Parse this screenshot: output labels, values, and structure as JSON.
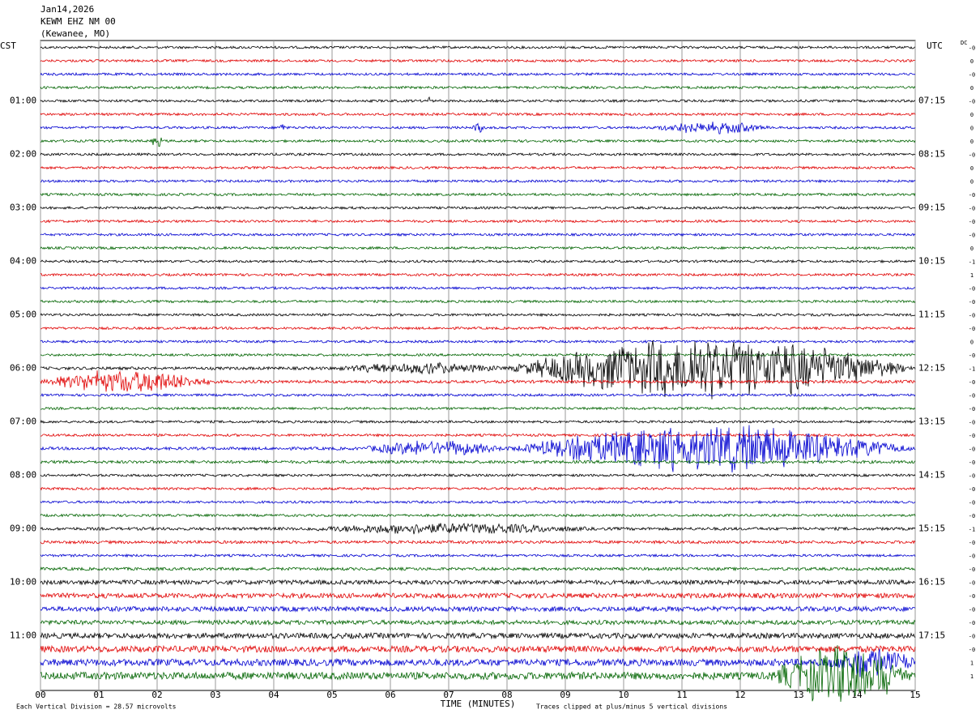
{
  "header": {
    "date": "Jan14,2026",
    "station": "KEWM EHZ NM 00",
    "location": "(Kewanee, MO)"
  },
  "left_zone": "CST",
  "right_zone": "UTC",
  "dc_heading": "DC",
  "left_labels": [
    "01:00",
    "02:00",
    "03:00",
    "04:00",
    "05:00",
    "06:00",
    "07:00",
    "08:00",
    "09:00",
    "10:00",
    "11:00"
  ],
  "right_labels": [
    "07:15",
    "08:15",
    "09:15",
    "10:15",
    "11:15",
    "12:15",
    "13:15",
    "14:15",
    "15:15",
    "16:15",
    "17:15"
  ],
  "x_ticks": [
    "00",
    "01",
    "02",
    "03",
    "04",
    "05",
    "06",
    "07",
    "08",
    "09",
    "10",
    "11",
    "12",
    "13",
    "14",
    "15"
  ],
  "x_title": "TIME (MINUTES)",
  "footer_left": "Each Vertical Division =   28.57 microvolts",
  "footer_right": "Traces clipped at plus/minus 5 vertical divisions",
  "colors": [
    "#000000",
    "#e00000",
    "#0000d0",
    "#006400"
  ],
  "dc_values": [
    "-0",
    "0",
    "-0",
    "0",
    "-0",
    "0",
    "0",
    "0",
    "-0",
    "0",
    "0",
    "-0",
    "-0",
    "-0",
    "-0",
    "0",
    "-1",
    "1",
    "-0",
    "-0",
    "-0",
    "-0",
    "0",
    "-0",
    "-1",
    "-0",
    "-0",
    "-0",
    "-0",
    "-0",
    "-0",
    "-0",
    "-0",
    "-0",
    "-0",
    "-0",
    "-1",
    "-0",
    "-0",
    "-0",
    "-0",
    "-0",
    "-0",
    "-0",
    "-0",
    "-0",
    "1",
    "1"
  ],
  "noise": [
    0.5,
    0.5,
    0.5,
    0.5,
    0.5,
    0.5,
    0.5,
    0.5,
    0.5,
    0.5,
    0.5,
    0.5,
    0.5,
    0.5,
    0.5,
    0.5,
    0.5,
    0.5,
    0.5,
    0.5,
    0.5,
    0.5,
    0.5,
    0.5,
    0.6,
    0.6,
    0.5,
    0.5,
    0.5,
    0.5,
    0.6,
    0.6,
    0.5,
    0.5,
    0.5,
    0.5,
    0.6,
    0.6,
    0.5,
    0.6,
    0.9,
    1,
    1,
    0.9,
    1.1,
    1.3,
    1.4,
    1.5
  ],
  "events": [
    {
      "trace": 4,
      "start": 6.6,
      "end": 6.7,
      "amplitude": 2
    },
    {
      "trace": 6,
      "start": 4.1,
      "end": 4.2,
      "amplitude": 2
    },
    {
      "trace": 6,
      "start": 7.4,
      "end": 7.6,
      "amplitude": 2
    },
    {
      "trace": 6,
      "start": 10.5,
      "end": 12.5,
      "amplitude": 2.5
    },
    {
      "trace": 7,
      "start": 1.9,
      "end": 2.1,
      "amplitude": 3
    },
    {
      "trace": 24,
      "start": 5,
      "end": 8,
      "amplitude": 2
    },
    {
      "trace": 24,
      "start": 8,
      "end": 15,
      "amplitude": 14
    },
    {
      "trace": 25,
      "start": 0,
      "end": 3,
      "amplitude": 5
    },
    {
      "trace": 30,
      "start": 5.5,
      "end": 8,
      "amplitude": 3
    },
    {
      "trace": 30,
      "start": 8,
      "end": 15,
      "amplitude": 10
    },
    {
      "trace": 36,
      "start": 4.5,
      "end": 9.5,
      "amplitude": 2
    },
    {
      "trace": 47,
      "start": 12.5,
      "end": 15,
      "amplitude": 12
    },
    {
      "trace": 46,
      "start": 13.5,
      "end": 15,
      "amplitude": 6
    }
  ]
}
